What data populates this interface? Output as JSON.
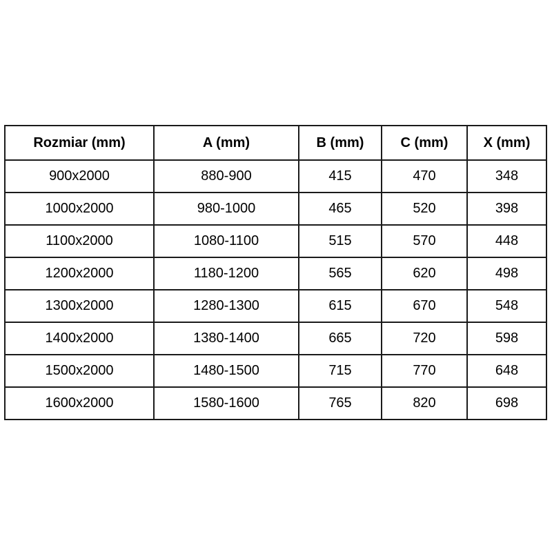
{
  "colors": {
    "background": "#ffffff",
    "border": "#1a1a1a",
    "text": "#000000"
  },
  "table": {
    "headers": [
      "Rozmiar (mm)",
      "A (mm)",
      "B (mm)",
      "C (mm)",
      "X (mm)"
    ],
    "rows": [
      [
        "900x2000",
        "880-900",
        "415",
        "470",
        "348"
      ],
      [
        "1000x2000",
        "980-1000",
        "465",
        "520",
        "398"
      ],
      [
        "1100x2000",
        "1080-1100",
        "515",
        "570",
        "448"
      ],
      [
        "1200x2000",
        "1180-1200",
        "565",
        "620",
        "498"
      ],
      [
        "1300x2000",
        "1280-1300",
        "615",
        "670",
        "548"
      ],
      [
        "1400x2000",
        "1380-1400",
        "665",
        "720",
        "598"
      ],
      [
        "1500x2000",
        "1480-1500",
        "715",
        "770",
        "648"
      ],
      [
        "1600x2000",
        "1580-1600",
        "765",
        "820",
        "698"
      ]
    ]
  },
  "chart_data": {
    "type": "table",
    "title": "",
    "columns": [
      "Rozmiar (mm)",
      "A (mm)",
      "B (mm)",
      "C (mm)",
      "X (mm)"
    ],
    "rows": [
      [
        "900x2000",
        "880-900",
        415,
        470,
        348
      ],
      [
        "1000x2000",
        "980-1000",
        465,
        520,
        398
      ],
      [
        "1100x2000",
        "1080-1100",
        515,
        570,
        448
      ],
      [
        "1200x2000",
        "1180-1200",
        565,
        620,
        498
      ],
      [
        "1300x2000",
        "1280-1300",
        615,
        670,
        548
      ],
      [
        "1400x2000",
        "1380-1400",
        665,
        720,
        598
      ],
      [
        "1500x2000",
        "1480-1500",
        715,
        770,
        648
      ],
      [
        "1600x2000",
        "1580-1600",
        765,
        820,
        698
      ]
    ]
  }
}
